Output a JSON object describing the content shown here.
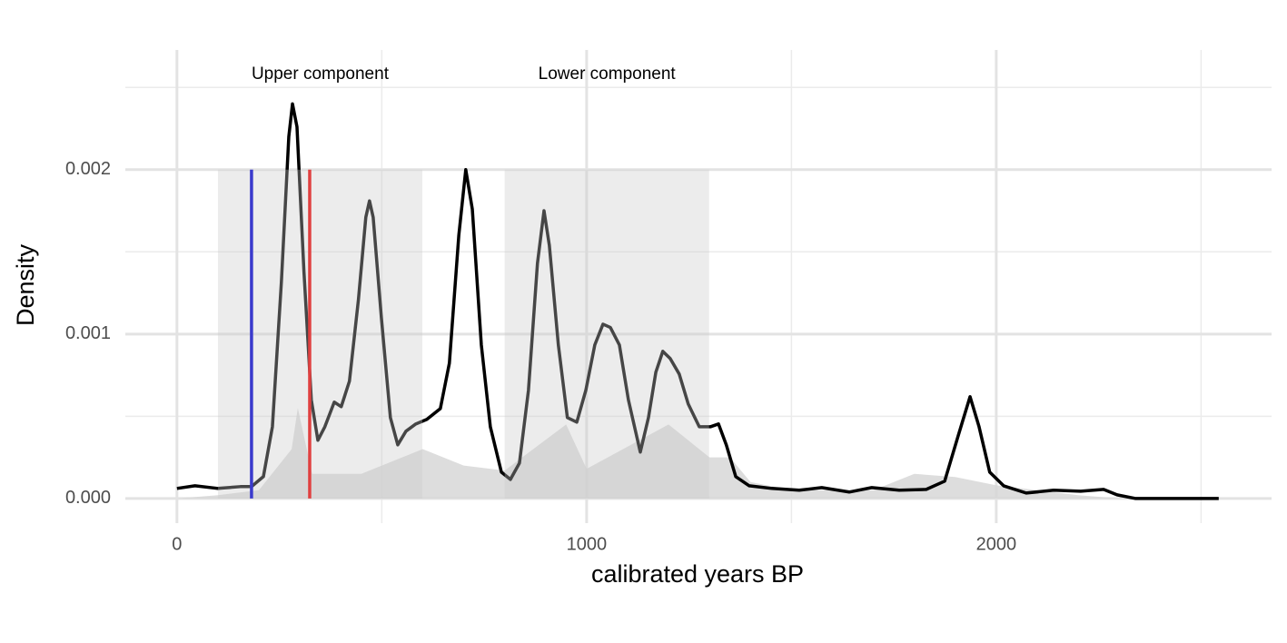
{
  "chart_data": {
    "type": "line",
    "xlabel": "calibrated years BP",
    "ylabel": "Density",
    "xlim": [
      -126,
      2672
    ],
    "ylim": [
      -0.00015,
      0.002728
    ],
    "xticks": [
      0,
      1000,
      2000
    ],
    "xminor": [
      500,
      1500,
      2500
    ],
    "yticks": [
      {
        "value": 0,
        "label": "0.000"
      },
      0.001,
      0.002
    ],
    "yminor": [
      0.0005,
      0.0015,
      0.0025
    ],
    "grid": true,
    "bands": [
      {
        "xmin": 100,
        "xmax": 599,
        "ymax": 0.002,
        "label": "Upper component",
        "label_y": 0.00258
      },
      {
        "xmin": 800,
        "xmax": 1299,
        "ymax": 0.002,
        "label": "Lower component",
        "label_y": 0.00258
      }
    ],
    "vlines": [
      {
        "x": 182,
        "color": "#3a3acc"
      },
      {
        "x": 324,
        "color": "#e04040"
      }
    ],
    "background": {
      "color": "#d4d4d4",
      "x": [
        0,
        100,
        200,
        280,
        295,
        330,
        450,
        600,
        700,
        800,
        950,
        1000,
        1200,
        1300,
        1350,
        1400,
        1500,
        1700,
        1800,
        1900,
        2000,
        2200,
        2300
      ],
      "values": [
        0,
        2e-05,
        5e-05,
        0.0003,
        0.00055,
        0.00015,
        0.00015,
        0.0003,
        0.0002,
        0.00017,
        0.00045,
        0.00018,
        0.00045,
        0.00025,
        0.00025,
        0.0001,
        5e-05,
        5e-05,
        0.00015,
        0.00013,
        8e-05,
        2e-05,
        0
      ]
    },
    "line": {
      "color": "#000000",
      "x": [
        0,
        44,
        100,
        155,
        182,
        211,
        233,
        255,
        273,
        282,
        293,
        310,
        328,
        344,
        361,
        384,
        401,
        421,
        443,
        461,
        470,
        479,
        499,
        521,
        539,
        559,
        583,
        610,
        643,
        665,
        688,
        705,
        721,
        743,
        765,
        792,
        814,
        836,
        858,
        880,
        896,
        909,
        931,
        953,
        976,
        998,
        1020,
        1040,
        1058,
        1080,
        1102,
        1131,
        1151,
        1169,
        1186,
        1204,
        1226,
        1248,
        1275,
        1302,
        1322,
        1341,
        1364,
        1397,
        1452,
        1519,
        1574,
        1641,
        1696,
        1763,
        1829,
        1874,
        1907,
        1936,
        1958,
        1984,
        2018,
        2073,
        2140,
        2206,
        2262,
        2295,
        2339,
        2543
      ],
      "values": [
        6.1e-05,
        7.7e-05,
        6.1e-05,
        7.2e-05,
        7.2e-05,
        0.000133,
        0.000436,
        0.00132,
        0.0022,
        0.0024,
        0.00226,
        0.00138,
        0.0006,
        0.000354,
        0.000436,
        0.000586,
        0.000558,
        0.000713,
        0.00121,
        0.00171,
        0.00181,
        0.00171,
        0.0011,
        0.000492,
        0.000326,
        0.000409,
        0.000453,
        0.000481,
        0.000547,
        0.000823,
        0.0016,
        0.002,
        0.00176,
        0.000934,
        0.000436,
        0.00016,
        0.000116,
        0.000215,
        0.000657,
        0.00143,
        0.00175,
        0.00154,
        0.000934,
        0.000492,
        0.000464,
        0.000657,
        0.000934,
        0.00106,
        0.00104,
        0.000934,
        0.0006,
        0.000282,
        0.000492,
        0.000768,
        0.000895,
        0.000851,
        0.000757,
        0.000575,
        0.000436,
        0.000436,
        0.000453,
        0.000326,
        0.000133,
        7.7e-05,
        6.1e-05,
        5e-05,
        6.6e-05,
        3.9e-05,
        6.6e-05,
        5e-05,
        5.5e-05,
        0.000105,
        0.000381,
        0.000619,
        0.000436,
        0.00016,
        7.7e-05,
        3.3e-05,
        5e-05,
        4.4e-05,
        5.5e-05,
        2.2e-05,
        0,
        0
      ]
    }
  }
}
